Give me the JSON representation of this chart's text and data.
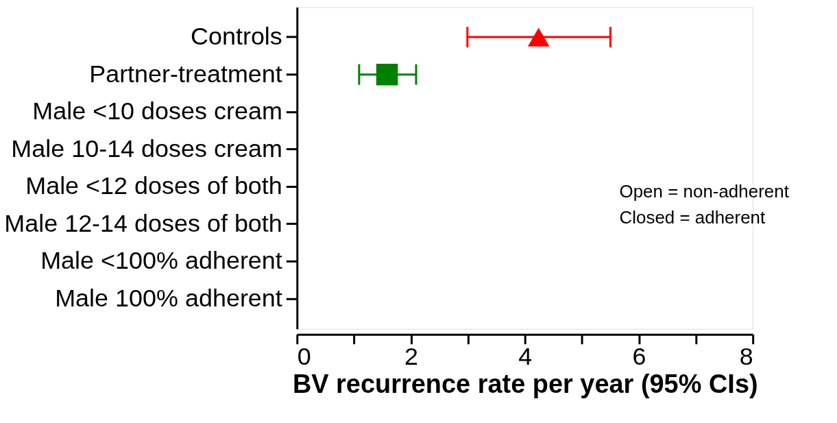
{
  "chart_data": {
    "type": "scatter",
    "orientation": "horizontal",
    "categories": [
      "Controls",
      "Partner-treatment",
      "Male <10 doses cream",
      "Male 10-14 doses cream",
      "Male <12 doses of both",
      "Male 12-14 doses of both",
      "Male <100% adherent",
      "Male 100% adherent"
    ],
    "series": [
      {
        "color": "#ff0000",
        "marker": "triangle",
        "values": [
          4.24,
          null,
          null,
          null,
          null,
          null,
          null,
          null
        ],
        "errors": [
          [
            2.99,
            5.5
          ],
          null,
          null,
          null,
          null,
          null,
          null,
          null
        ]
      },
      {
        "color": "#008000",
        "marker": "square",
        "values": [
          null,
          1.58,
          null,
          null,
          null,
          null,
          null,
          null
        ],
        "errors": [
          null,
          [
            1.09,
            2.09
          ],
          null,
          null,
          null,
          null,
          null,
          null
        ]
      }
    ],
    "xlabel": "BV recurrence rate per year (95% CIs)",
    "xlim": [
      0,
      8
    ],
    "xticks": [
      0,
      {
        "value": 1,
        "label": null
      },
      2,
      {
        "value": 3,
        "label": null
      },
      4,
      {
        "value": 5,
        "label": null
      },
      6,
      {
        "value": 7,
        "label": null
      },
      8
    ],
    "annotations": [
      "Open = non-adherent",
      "Closed = adherent"
    ],
    "grid": false
  }
}
